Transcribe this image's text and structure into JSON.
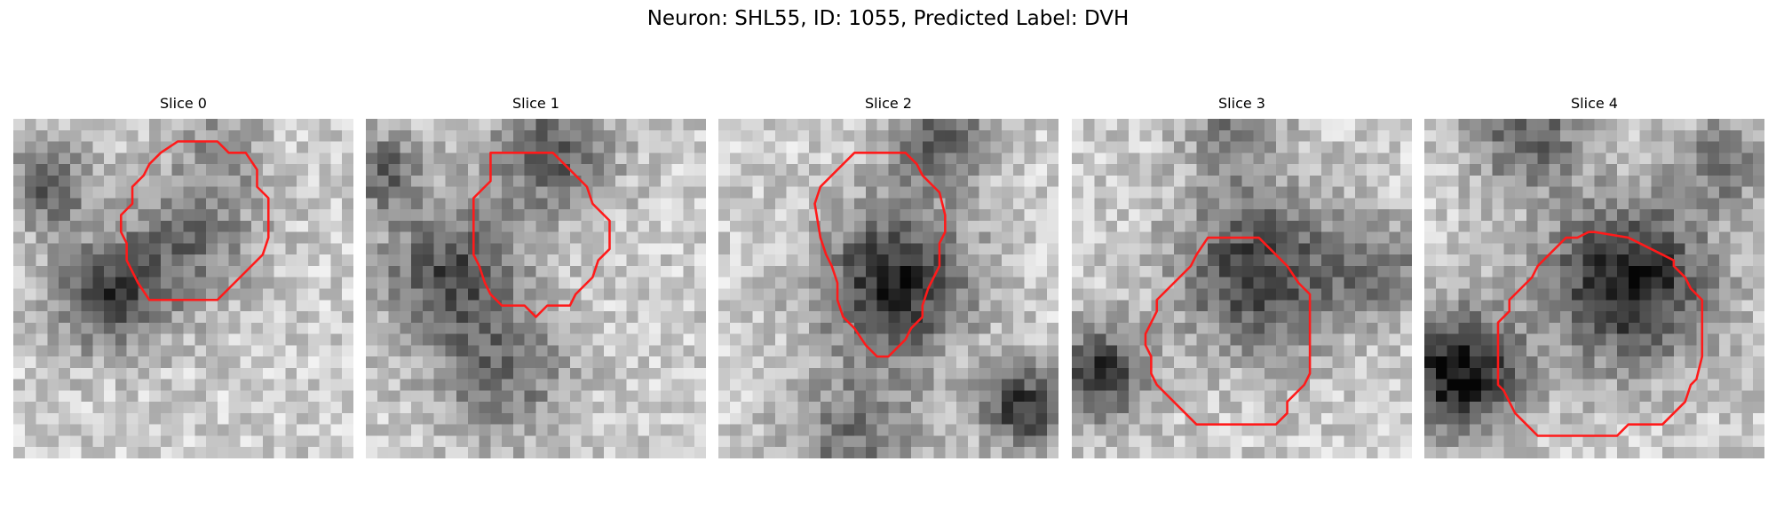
{
  "figure": {
    "title": "Neuron: SHL55, ID: 1055, Predicted Label: DVH"
  },
  "slices": [
    {
      "title": "Slice 0"
    },
    {
      "title": "Slice 1"
    },
    {
      "title": "Slice 2"
    },
    {
      "title": "Slice 3"
    },
    {
      "title": "Slice 4"
    }
  ],
  "colors": {
    "contour": "#ff1a1a",
    "colormap": "gray"
  }
}
